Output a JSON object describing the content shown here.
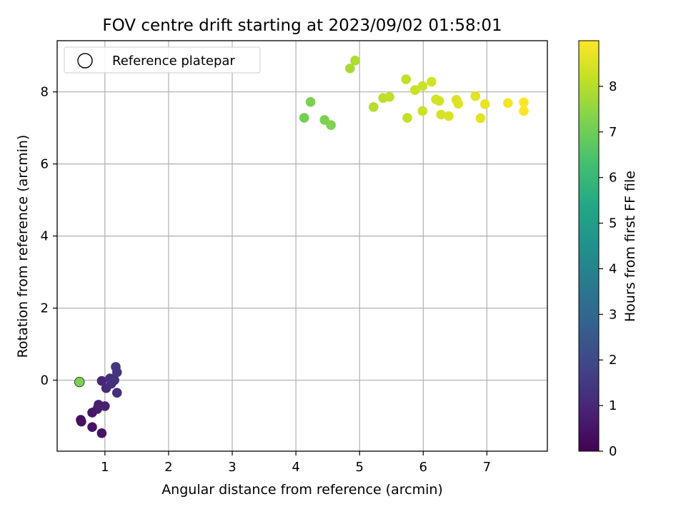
{
  "chart_data": {
    "type": "scatter",
    "title": "FOV centre drift starting at 2023/09/02 01:58:01",
    "xlabel": "Angular distance from reference (arcmin)",
    "ylabel": "Rotation from reference (arcmin)",
    "xlim": [
      0.25,
      7.95
    ],
    "ylim": [
      -1.97,
      9.42
    ],
    "xticks": [
      1,
      2,
      3,
      4,
      5,
      6,
      7
    ],
    "yticks": [
      0,
      2,
      4,
      6,
      8
    ],
    "grid": true,
    "legend": {
      "position": "top-left",
      "entries": [
        "Reference platepar"
      ]
    },
    "colorbar": {
      "label": "Hours from first FF file",
      "colormap": "viridis",
      "range": [
        0,
        9.0
      ],
      "ticks": [
        0,
        1,
        2,
        3,
        4,
        5,
        6,
        7,
        8
      ]
    },
    "reference_point": {
      "x": 0.6,
      "y": -0.05,
      "hours": 7.2
    },
    "points": [
      {
        "x": 0.62,
        "y": -1.1,
        "hours": 0.35
      },
      {
        "x": 0.63,
        "y": -1.15,
        "hours": 0.4
      },
      {
        "x": 0.8,
        "y": -0.9,
        "hours": 0.55
      },
      {
        "x": 0.8,
        "y": -1.3,
        "hours": 0.5
      },
      {
        "x": 0.88,
        "y": -0.8,
        "hours": 0.7
      },
      {
        "x": 0.9,
        "y": -0.68,
        "hours": 0.75
      },
      {
        "x": 0.95,
        "y": -1.47,
        "hours": 0.45
      },
      {
        "x": 1.0,
        "y": -0.72,
        "hours": 0.8
      },
      {
        "x": 0.95,
        "y": -0.02,
        "hours": 1.0
      },
      {
        "x": 1.02,
        "y": -0.22,
        "hours": 1.1
      },
      {
        "x": 1.08,
        "y": 0.05,
        "hours": 1.2
      },
      {
        "x": 1.1,
        "y": -0.1,
        "hours": 1.25
      },
      {
        "x": 1.15,
        "y": 0.0,
        "hours": 1.3
      },
      {
        "x": 1.17,
        "y": 0.37,
        "hours": 1.4
      },
      {
        "x": 1.19,
        "y": 0.22,
        "hours": 1.35
      },
      {
        "x": 1.19,
        "y": -0.35,
        "hours": 1.2
      },
      {
        "x": 4.13,
        "y": 7.28,
        "hours": 7.1
      },
      {
        "x": 4.23,
        "y": 7.72,
        "hours": 7.2
      },
      {
        "x": 4.45,
        "y": 7.22,
        "hours": 7.2
      },
      {
        "x": 4.55,
        "y": 7.08,
        "hours": 7.25
      },
      {
        "x": 4.85,
        "y": 8.65,
        "hours": 7.8
      },
      {
        "x": 4.93,
        "y": 8.87,
        "hours": 7.9
      },
      {
        "x": 5.22,
        "y": 7.58,
        "hours": 8.0
      },
      {
        "x": 5.37,
        "y": 7.83,
        "hours": 8.1
      },
      {
        "x": 5.47,
        "y": 7.86,
        "hours": 8.1
      },
      {
        "x": 5.73,
        "y": 8.35,
        "hours": 8.2
      },
      {
        "x": 5.75,
        "y": 7.28,
        "hours": 8.2
      },
      {
        "x": 5.87,
        "y": 8.05,
        "hours": 8.3
      },
      {
        "x": 5.99,
        "y": 8.16,
        "hours": 8.3
      },
      {
        "x": 5.99,
        "y": 7.47,
        "hours": 8.3
      },
      {
        "x": 6.13,
        "y": 8.28,
        "hours": 8.4
      },
      {
        "x": 6.2,
        "y": 7.79,
        "hours": 8.4
      },
      {
        "x": 6.25,
        "y": 7.75,
        "hours": 8.4
      },
      {
        "x": 6.28,
        "y": 7.37,
        "hours": 8.45
      },
      {
        "x": 6.4,
        "y": 7.33,
        "hours": 8.5
      },
      {
        "x": 6.52,
        "y": 7.78,
        "hours": 8.5
      },
      {
        "x": 6.55,
        "y": 7.67,
        "hours": 8.55
      },
      {
        "x": 6.82,
        "y": 7.88,
        "hours": 8.6
      },
      {
        "x": 6.9,
        "y": 7.27,
        "hours": 8.6
      },
      {
        "x": 6.97,
        "y": 7.66,
        "hours": 8.7
      },
      {
        "x": 7.33,
        "y": 7.69,
        "hours": 8.85
      },
      {
        "x": 7.58,
        "y": 7.71,
        "hours": 8.95
      },
      {
        "x": 7.58,
        "y": 7.47,
        "hours": 8.95
      }
    ]
  }
}
